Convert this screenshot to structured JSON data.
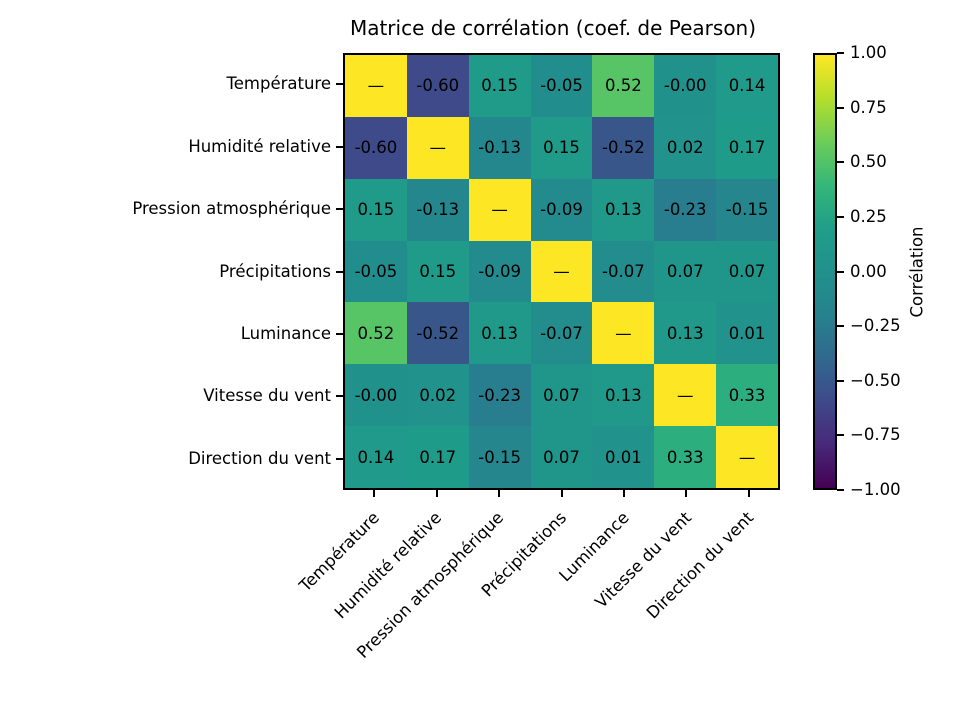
{
  "chart_data": {
    "type": "heatmap",
    "title": "Matrice de corrélation (coef. de Pearson)",
    "variables": [
      "Température",
      "Humidité relative",
      "Pression atmosphérique",
      "Précipitations",
      "Luminance",
      "Vitesse du vent",
      "Direction du vent"
    ],
    "matrix": [
      [
        1.0,
        -0.6,
        0.15,
        -0.05,
        0.52,
        -0.0,
        0.14
      ],
      [
        -0.6,
        1.0,
        -0.13,
        0.15,
        -0.52,
        0.02,
        0.17
      ],
      [
        0.15,
        -0.13,
        1.0,
        -0.09,
        0.13,
        -0.23,
        -0.15
      ],
      [
        -0.05,
        0.15,
        -0.09,
        1.0,
        -0.07,
        0.07,
        0.07
      ],
      [
        0.52,
        -0.52,
        0.13,
        -0.07,
        1.0,
        0.13,
        0.01
      ],
      [
        -0.0,
        0.02,
        -0.23,
        0.07,
        0.13,
        1.0,
        0.33
      ],
      [
        0.14,
        0.17,
        -0.15,
        0.07,
        0.01,
        0.33,
        1.0
      ]
    ],
    "cell_labels": [
      [
        "—",
        "-0.60",
        "0.15",
        "-0.05",
        "0.52",
        "-0.00",
        "0.14"
      ],
      [
        "-0.60",
        "—",
        "-0.13",
        "0.15",
        "-0.52",
        "0.02",
        "0.17"
      ],
      [
        "0.15",
        "-0.13",
        "—",
        "-0.09",
        "0.13",
        "-0.23",
        "-0.15"
      ],
      [
        "-0.05",
        "0.15",
        "-0.09",
        "—",
        "-0.07",
        "0.07",
        "0.07"
      ],
      [
        "0.52",
        "-0.52",
        "0.13",
        "-0.07",
        "—",
        "0.13",
        "0.01"
      ],
      [
        "-0.00",
        "0.02",
        "-0.23",
        "0.07",
        "0.13",
        "—",
        "0.33"
      ],
      [
        "0.14",
        "0.17",
        "-0.15",
        "0.07",
        "0.01",
        "0.33",
        "—"
      ]
    ],
    "vmin": -1,
    "vmax": 1,
    "colormap": {
      "name": "viridis",
      "stops": [
        "#440154",
        "#482878",
        "#3e4a89",
        "#31688e",
        "#26828e",
        "#21918c",
        "#1f9e89",
        "#35b779",
        "#6dcd59",
        "#b5de2b",
        "#fde725"
      ]
    },
    "colorbar": {
      "label": "Corrélation",
      "tick_labels": [
        "1.00",
        "0.75",
        "0.50",
        "0.25",
        "0.00",
        "−0.25",
        "−0.50",
        "−0.75",
        "−1.00"
      ],
      "tick_values": [
        1.0,
        0.75,
        0.5,
        0.25,
        0.0,
        -0.25,
        -0.5,
        -0.75,
        -1.0
      ]
    },
    "layout": {
      "x_tick_rotation_deg": 45,
      "grid": false,
      "legend": "colorbar-right",
      "text_color": "#000000",
      "background_color": "#ffffff",
      "annotation_color": "#000000"
    }
  }
}
